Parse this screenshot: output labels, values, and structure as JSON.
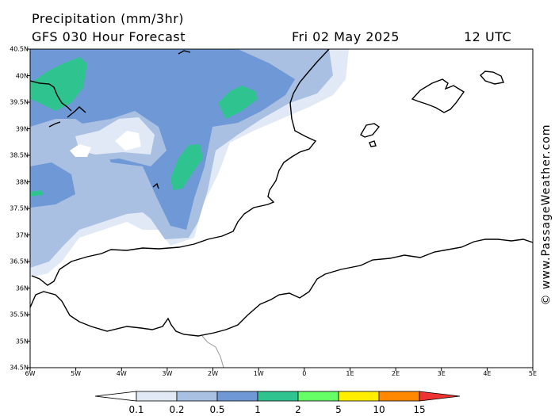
{
  "header": {
    "title": "Precipitation (mm/3hr)",
    "subtitle": "GFS 030 Hour Forecast",
    "date": "Fri 02 May 2025",
    "time": "12 UTC"
  },
  "axes": {
    "lat_labels": [
      "40.5N",
      "40N",
      "39.5N",
      "39N",
      "38.5N",
      "38N",
      "37.5N",
      "37N",
      "36.5N",
      "36N",
      "35.5N",
      "35N",
      "34.5N"
    ],
    "lon_labels": [
      "6W",
      "5W",
      "4W",
      "3W",
      "2W",
      "1W",
      "0",
      "1E",
      "2E",
      "3E",
      "4E",
      "5E"
    ]
  },
  "credit": "© www.PassageWeather.com",
  "legend": {
    "labels": [
      "0.1",
      "0.2",
      "0.5",
      "1",
      "2",
      "5",
      "10",
      "15"
    ],
    "colors": [
      "#ffffff",
      "#e0e9f5",
      "#a9c0e2",
      "#6f98d6",
      "#2fc48f",
      "#66ff66",
      "#ffee00",
      "#ff8800",
      "#ee3333"
    ]
  },
  "map_colors": {
    "land": "#ffffff",
    "coast": "#000000"
  }
}
